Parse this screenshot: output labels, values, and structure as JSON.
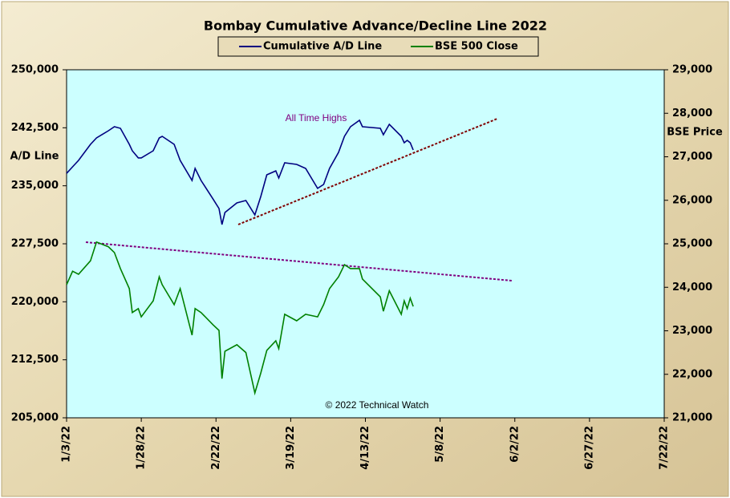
{
  "chart_data": {
    "type": "line",
    "title": "Bombay Cumulative Advance/Decline Line 2022",
    "ylabel": "A/D Line",
    "y2label": "BSE Price",
    "annotations": [
      "All Time Highs",
      "© 2022 Technical Watch"
    ],
    "x": [
      "2022-01-03",
      "2022-01-05",
      "2022-01-07",
      "2022-01-11",
      "2022-01-13",
      "2022-01-17",
      "2022-01-19",
      "2022-01-21",
      "2022-01-24",
      "2022-01-25",
      "2022-01-27",
      "2022-01-28",
      "2022-02-01",
      "2022-02-03",
      "2022-02-04",
      "2022-02-08",
      "2022-02-10",
      "2022-02-14",
      "2022-02-15",
      "2022-02-17",
      "2022-02-21",
      "2022-02-23",
      "2022-02-24",
      "2022-02-25",
      "2022-03-01",
      "2022-03-04",
      "2022-03-07",
      "2022-03-09",
      "2022-03-11",
      "2022-03-14",
      "2022-03-15",
      "2022-03-17",
      "2022-03-21",
      "2022-03-24",
      "2022-03-28",
      "2022-03-30",
      "2022-04-01",
      "2022-04-04",
      "2022-04-06",
      "2022-04-08",
      "2022-04-11",
      "2022-04-12",
      "2022-04-18",
      "2022-04-19",
      "2022-04-21",
      "2022-04-25",
      "2022-04-26",
      "2022-04-27",
      "2022-04-28",
      "2022-04-29"
    ],
    "series": [
      {
        "name": "Cumulative A/D Line",
        "color": "#000080",
        "values": [
          236600,
          237450,
          238280,
          240360,
          241190,
          242120,
          242640,
          242430,
          240360,
          239530,
          238600,
          238600,
          239530,
          241190,
          241390,
          240360,
          238280,
          235690,
          237250,
          235690,
          233300,
          232060,
          229990,
          231540,
          232790,
          233100,
          231230,
          233620,
          236420,
          236930,
          236000,
          237970,
          237770,
          237250,
          234660,
          235170,
          237250,
          239320,
          241390,
          242640,
          243470,
          242640,
          242430,
          241600,
          242950,
          241390,
          240560,
          240880,
          240560,
          239630
        ]
      },
      {
        "name": "BSE 500 Close",
        "color": "#008000",
        "axis": "y2",
        "values": [
          24060,
          24370,
          24300,
          24610,
          25040,
          24930,
          24800,
          24430,
          23970,
          23420,
          23510,
          23320,
          23690,
          24240,
          24060,
          23600,
          23970,
          22900,
          23510,
          23420,
          23140,
          23010,
          21900,
          22530,
          22680,
          22500,
          21570,
          22030,
          22550,
          22770,
          22590,
          23380,
          23230,
          23380,
          23320,
          23600,
          23970,
          24240,
          24520,
          24430,
          24430,
          24190,
          23780,
          23450,
          23920,
          23380,
          23690,
          23510,
          23750,
          23560
        ]
      }
    ],
    "xlim": [
      "2022-01-03",
      "2022-07-22"
    ],
    "xticks": [
      {
        "value": "2022-01-03",
        "label": "1/3/22"
      },
      {
        "value": "2022-01-28",
        "label": "1/28/22"
      },
      {
        "value": "2022-02-22",
        "label": "2/22/22"
      },
      {
        "value": "2022-03-19",
        "label": "3/19/22"
      },
      {
        "value": "2022-04-13",
        "label": "4/13/22"
      },
      {
        "value": "2022-05-08",
        "label": "5/8/22"
      },
      {
        "value": "2022-06-02",
        "label": "6/2/22"
      },
      {
        "value": "2022-06-27",
        "label": "6/27/22"
      },
      {
        "value": "2022-07-22",
        "label": "7/22/22"
      }
    ],
    "ylim": [
      205000,
      250000
    ],
    "yticks": [
      {
        "value": 205000,
        "label": "205,000"
      },
      {
        "value": 212500,
        "label": "212,500"
      },
      {
        "value": 220000,
        "label": "220,000"
      },
      {
        "value": 227500,
        "label": "227,500"
      },
      {
        "value": 235000,
        "label": "235,000"
      },
      {
        "value": 242500,
        "label": "242,500"
      },
      {
        "value": 250000,
        "label": "250,000"
      }
    ],
    "y2lim": [
      21000,
      29000
    ],
    "y2ticks": [
      {
        "value": 21000,
        "label": "21,000"
      },
      {
        "value": 22000,
        "label": "22,000"
      },
      {
        "value": 23000,
        "label": "23,000"
      },
      {
        "value": 24000,
        "label": "24,000"
      },
      {
        "value": 25000,
        "label": "25,000"
      },
      {
        "value": 26000,
        "label": "26,000"
      },
      {
        "value": 27000,
        "label": "27,000"
      },
      {
        "value": 28000,
        "label": "28,000"
      },
      {
        "value": 29000,
        "label": "29,000"
      }
    ],
    "grid": false,
    "legend": "top"
  }
}
